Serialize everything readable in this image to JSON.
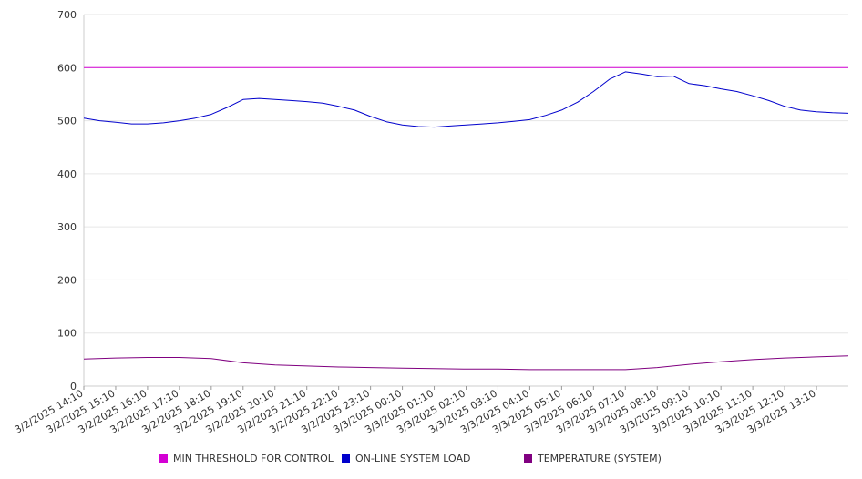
{
  "chart_data": {
    "type": "line",
    "title": "",
    "xlabel": "",
    "ylabel": "",
    "ylim": [
      0,
      700
    ],
    "yticks": [
      0,
      100,
      200,
      300,
      400,
      500,
      600,
      700
    ],
    "grid": true,
    "legend_position": "bottom",
    "x_tick_labels": [
      "3/2/2025 14:10",
      "3/2/2025 15:10",
      "3/2/2025 16:10",
      "3/2/2025 17:10",
      "3/2/2025 18:10",
      "3/2/2025 19:10",
      "3/2/2025 20:10",
      "3/2/2025 21:10",
      "3/2/2025 22:10",
      "3/2/2025 23:10",
      "3/3/2025 00:10",
      "3/3/2025 01:10",
      "3/3/2025 02:10",
      "3/3/2025 03:10",
      "3/3/2025 04:10",
      "3/3/2025 05:10",
      "3/3/2025 06:10",
      "3/3/2025 07:10",
      "3/3/2025 08:10",
      "3/3/2025 09:10",
      "3/3/2025 10:10",
      "3/3/2025 11:10",
      "3/3/2025 12:10",
      "3/3/2025 13:10"
    ],
    "x_range": [
      "3/2/2025 14:10",
      "3/3/2025 14:10"
    ],
    "series": [
      {
        "name": "MIN THRESHOLD FOR CONTROL",
        "color": "#d400d4",
        "x": [
          "3/2/2025 14:10",
          "3/3/2025 14:10"
        ],
        "y": [
          600,
          600
        ]
      },
      {
        "name": "ON-LINE SYSTEM LOAD",
        "color": "#0000cc",
        "x": [
          "3/2/2025 14:10",
          "3/2/2025 14:40",
          "3/2/2025 15:10",
          "3/2/2025 15:40",
          "3/2/2025 16:10",
          "3/2/2025 16:40",
          "3/2/2025 17:10",
          "3/2/2025 17:40",
          "3/2/2025 18:10",
          "3/2/2025 18:40",
          "3/2/2025 19:10",
          "3/2/2025 19:40",
          "3/2/2025 20:10",
          "3/2/2025 20:40",
          "3/2/2025 21:10",
          "3/2/2025 21:40",
          "3/2/2025 22:10",
          "3/2/2025 22:40",
          "3/2/2025 23:10",
          "3/2/2025 23:40",
          "3/3/2025 00:10",
          "3/3/2025 00:40",
          "3/3/2025 01:10",
          "3/3/2025 01:40",
          "3/3/2025 02:10",
          "3/3/2025 02:40",
          "3/3/2025 03:10",
          "3/3/2025 03:40",
          "3/3/2025 04:10",
          "3/3/2025 04:40",
          "3/3/2025 05:10",
          "3/3/2025 05:40",
          "3/3/2025 06:10",
          "3/3/2025 06:40",
          "3/3/2025 07:10",
          "3/3/2025 07:40",
          "3/3/2025 08:10",
          "3/3/2025 08:40",
          "3/3/2025 09:10",
          "3/3/2025 09:40",
          "3/3/2025 10:10",
          "3/3/2025 10:40",
          "3/3/2025 11:10",
          "3/3/2025 11:40",
          "3/3/2025 12:10",
          "3/3/2025 12:40",
          "3/3/2025 13:10",
          "3/3/2025 13:40",
          "3/3/2025 14:10"
        ],
        "y": [
          505,
          500,
          497,
          494,
          494,
          496,
          500,
          505,
          512,
          525,
          540,
          542,
          540,
          538,
          536,
          533,
          527,
          520,
          508,
          498,
          492,
          489,
          488,
          490,
          492,
          494,
          496,
          499,
          502,
          510,
          520,
          535,
          555,
          578,
          592,
          588,
          583,
          584,
          570,
          566,
          560,
          555,
          547,
          538,
          527,
          520,
          517,
          515,
          514
        ]
      },
      {
        "name": "TEMPERATURE (SYSTEM)",
        "color": "#800080",
        "x": [
          "3/2/2025 14:10",
          "3/2/2025 15:10",
          "3/2/2025 16:10",
          "3/2/2025 17:10",
          "3/2/2025 18:10",
          "3/2/2025 19:10",
          "3/2/2025 20:10",
          "3/2/2025 21:10",
          "3/2/2025 22:10",
          "3/2/2025 23:10",
          "3/3/2025 00:10",
          "3/3/2025 01:10",
          "3/3/2025 02:10",
          "3/3/2025 03:10",
          "3/3/2025 04:10",
          "3/3/2025 05:10",
          "3/3/2025 06:10",
          "3/3/2025 07:10",
          "3/3/2025 08:10",
          "3/3/2025 09:10",
          "3/3/2025 10:10",
          "3/3/2025 11:10",
          "3/3/2025 12:10",
          "3/3/2025 13:10",
          "3/3/2025 14:10"
        ],
        "y": [
          51,
          53,
          54,
          54,
          52,
          44,
          40,
          38,
          36,
          35,
          34,
          33,
          32,
          32,
          31,
          31,
          31,
          31,
          35,
          41,
          46,
          50,
          53,
          55,
          57
        ]
      }
    ]
  },
  "legend": {
    "items": [
      {
        "label": "MIN THRESHOLD FOR CONTROL",
        "color": "#d400d4"
      },
      {
        "label": "ON-LINE SYSTEM LOAD",
        "color": "#0000cc"
      },
      {
        "label": "TEMPERATURE (SYSTEM)",
        "color": "#800080"
      }
    ]
  }
}
